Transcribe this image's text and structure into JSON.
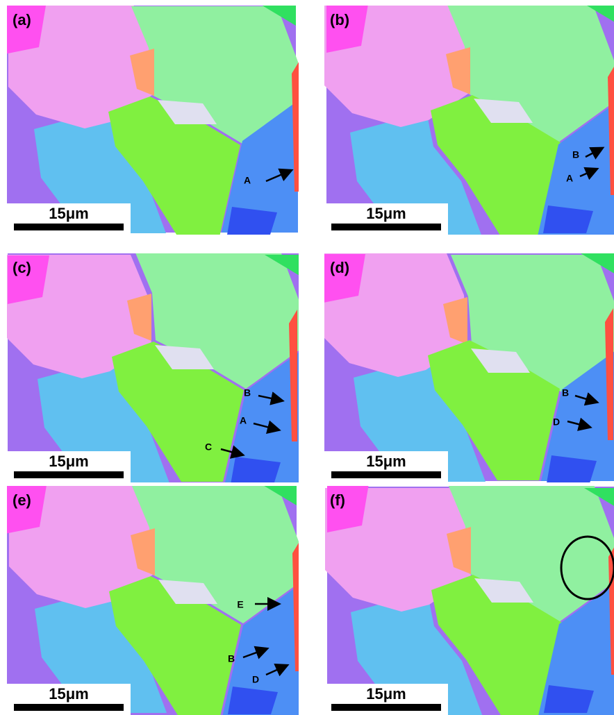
{
  "panels": [
    {
      "label": "(a)",
      "scale_bar": "15μm",
      "markers": [
        "A"
      ]
    },
    {
      "label": "(b)",
      "scale_bar": "15μm",
      "markers": [
        "B",
        "A"
      ]
    },
    {
      "label": "(c)",
      "scale_bar": "15μm",
      "markers": [
        "B",
        "A",
        "C"
      ]
    },
    {
      "label": "(d)",
      "scale_bar": "15μm",
      "markers": [
        "B",
        "D"
      ]
    },
    {
      "label": "(e)",
      "scale_bar": "15μm",
      "markers": [
        "E",
        "B",
        "D"
      ]
    },
    {
      "label": "(f)",
      "scale_bar": "15μm",
      "markers": []
    }
  ]
}
